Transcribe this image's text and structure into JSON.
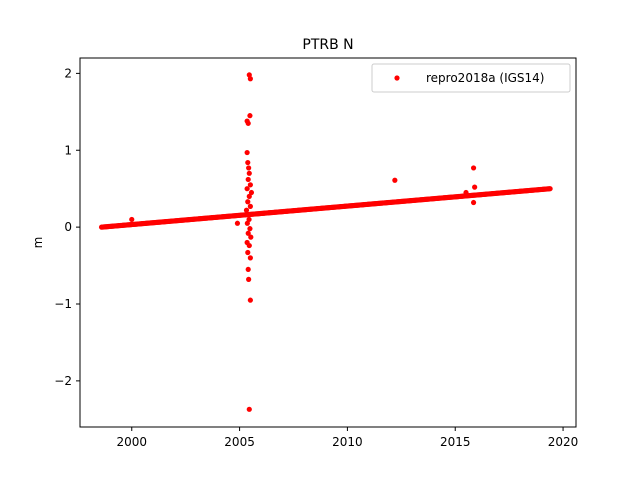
{
  "chart_data": {
    "type": "scatter",
    "title": "PTRB N",
    "xlabel": "",
    "ylabel": "m",
    "xlim": [
      1997.6,
      2020.6
    ],
    "ylim": [
      -2.6,
      2.2
    ],
    "xticks": [
      2000,
      2005,
      2010,
      2015,
      2020
    ],
    "yticks": [
      -2,
      -1,
      0,
      1,
      2
    ],
    "grid": false,
    "legend_position": "top-right",
    "series": [
      {
        "name": "repro2018a (IGS14)",
        "color": "#ff0000",
        "marker": "circle",
        "trend": {
          "x_start": 1998.6,
          "x_end": 2019.4,
          "y_start": 0.0,
          "y_end": 0.5
        },
        "points": [
          {
            "x": 2000.0,
            "y": 0.1
          },
          {
            "x": 2004.9,
            "y": 0.05
          },
          {
            "x": 2005.35,
            "y": 1.38
          },
          {
            "x": 2005.4,
            "y": 1.35
          },
          {
            "x": 2005.45,
            "y": 1.98
          },
          {
            "x": 2005.5,
            "y": 1.93
          },
          {
            "x": 2005.48,
            "y": 1.45
          },
          {
            "x": 2005.35,
            "y": 0.97
          },
          {
            "x": 2005.38,
            "y": 0.84
          },
          {
            "x": 2005.42,
            "y": 0.77
          },
          {
            "x": 2005.45,
            "y": 0.7
          },
          {
            "x": 2005.4,
            "y": 0.62
          },
          {
            "x": 2005.5,
            "y": 0.55
          },
          {
            "x": 2005.35,
            "y": 0.5
          },
          {
            "x": 2005.55,
            "y": 0.45
          },
          {
            "x": 2005.45,
            "y": 0.4
          },
          {
            "x": 2005.38,
            "y": 0.33
          },
          {
            "x": 2005.5,
            "y": 0.27
          },
          {
            "x": 2005.32,
            "y": 0.22
          },
          {
            "x": 2005.44,
            "y": 0.1
          },
          {
            "x": 2005.36,
            "y": 0.05
          },
          {
            "x": 2005.48,
            "y": -0.02
          },
          {
            "x": 2005.4,
            "y": -0.08
          },
          {
            "x": 2005.52,
            "y": -0.13
          },
          {
            "x": 2005.35,
            "y": -0.2
          },
          {
            "x": 2005.45,
            "y": -0.24
          },
          {
            "x": 2005.38,
            "y": -0.33
          },
          {
            "x": 2005.5,
            "y": -0.4
          },
          {
            "x": 2005.4,
            "y": -0.55
          },
          {
            "x": 2005.42,
            "y": -0.68
          },
          {
            "x": 2005.5,
            "y": -0.95
          },
          {
            "x": 2005.45,
            "y": -2.37
          },
          {
            "x": 2012.2,
            "y": 0.61
          },
          {
            "x": 2015.5,
            "y": 0.45
          },
          {
            "x": 2015.85,
            "y": 0.77
          },
          {
            "x": 2015.9,
            "y": 0.52
          },
          {
            "x": 2015.85,
            "y": 0.32
          }
        ]
      }
    ]
  }
}
